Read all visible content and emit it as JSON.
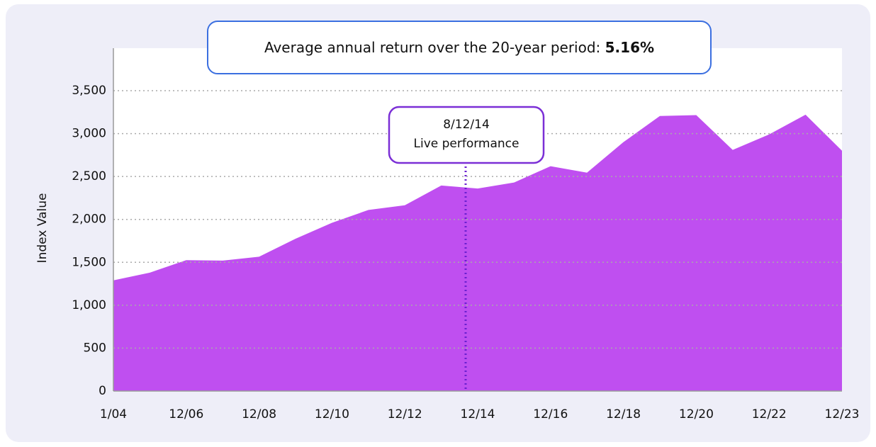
{
  "chart_data": {
    "type": "area",
    "title": "Average annual return over the 20-year period:",
    "title_value": "5.16%",
    "y_label": "Index Value",
    "annotation": {
      "date": "8/12/14",
      "text": "Live performance"
    },
    "categories": [
      "1/04",
      null,
      "12/06",
      null,
      "12/08",
      null,
      "12/10",
      null,
      "12/12",
      null,
      "12/14",
      null,
      "12/16",
      null,
      "12/18",
      null,
      "12/20",
      null,
      "12/22",
      null,
      "12/23"
    ],
    "values": [
      1290,
      1380,
      1525,
      1520,
      1565,
      1775,
      1960,
      2110,
      2165,
      2395,
      2360,
      2430,
      2620,
      2545,
      2900,
      3205,
      3215,
      2810,
      2990,
      3220,
      2800
    ],
    "color": "#bf4ff0",
    "ylim": [
      0,
      3500
    ],
    "yticks": [
      0,
      500,
      {
        "value": 1000,
        "label": "1,000"
      },
      {
        "value": 1500,
        "label": "1,500"
      },
      {
        "value": 2000,
        "label": "2,000"
      },
      {
        "value": 2500,
        "label": "2,500"
      },
      {
        "value": 3000,
        "label": "3,000"
      },
      {
        "value": 3500,
        "label": "3,500"
      }
    ],
    "grid": true
  }
}
